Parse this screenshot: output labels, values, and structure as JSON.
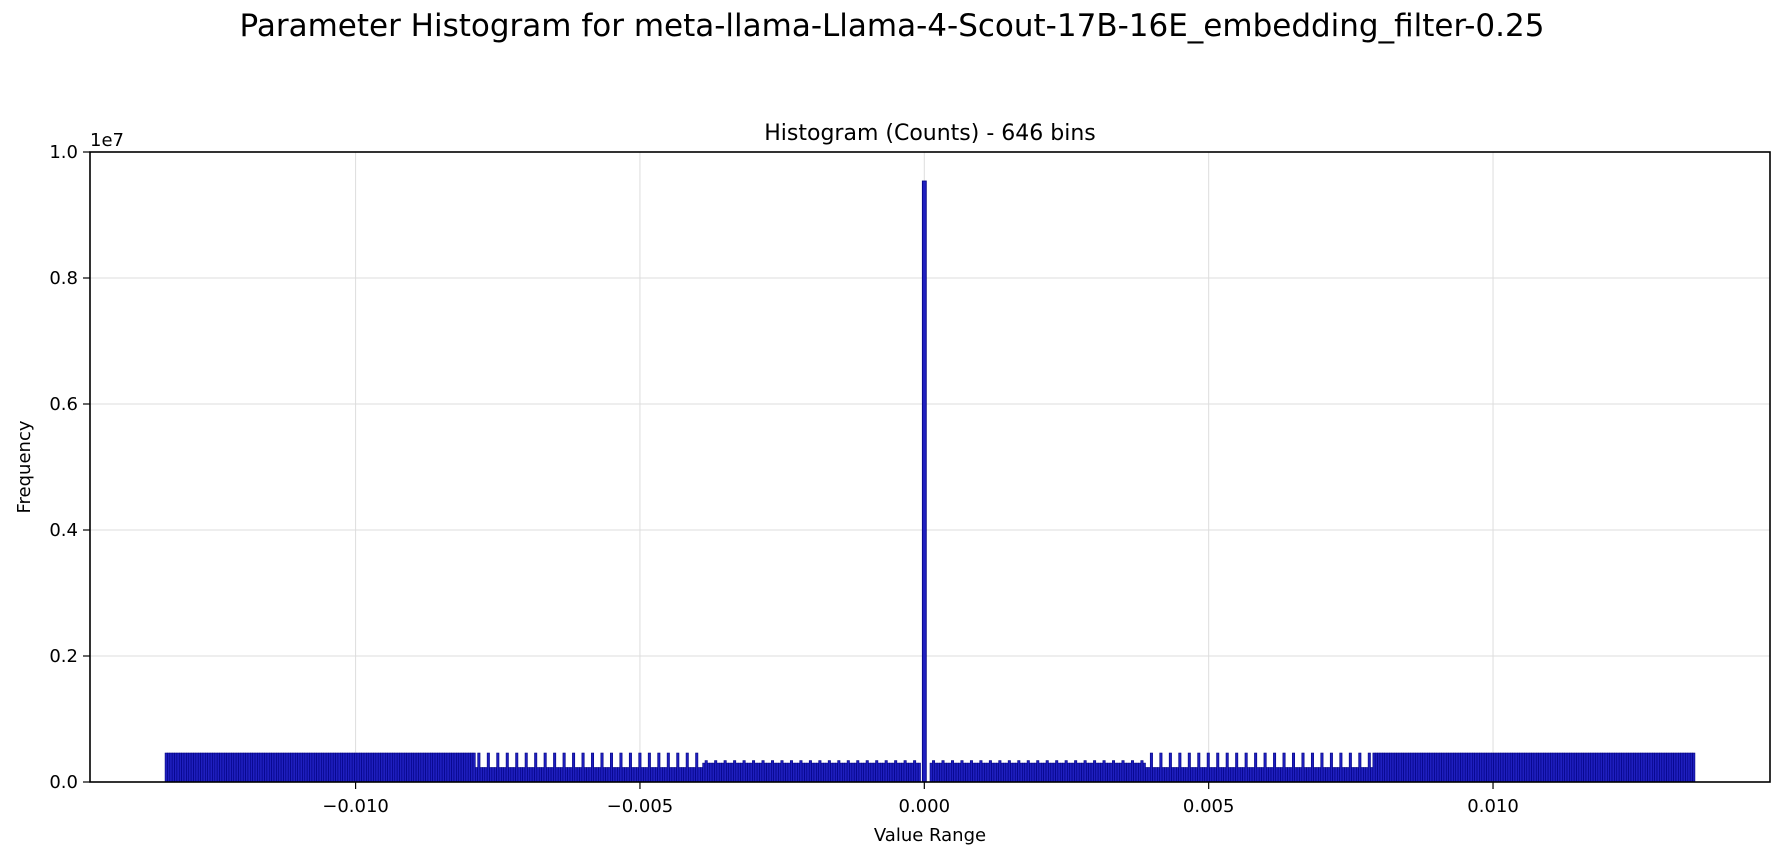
{
  "figure": {
    "suptitle": "Parameter Histogram for meta-llama-Llama-4-Scout-17B-16E_embedding_filter-0.25"
  },
  "chart_data": {
    "type": "bar",
    "title": "Histogram (Counts) - 646 bins",
    "xlabel": "Value Range",
    "ylabel": "Frequency",
    "y_offset_label": "1e7",
    "xlim": [
      -0.01467,
      0.01487
    ],
    "ylim": [
      0,
      10000000
    ],
    "xticks": [
      -0.01,
      -0.005,
      0.0,
      0.005,
      0.01
    ],
    "xtick_labels": [
      "−0.010",
      "−0.005",
      "0.000",
      "0.005",
      "0.010"
    ],
    "yticks": [
      0,
      2000000,
      4000000,
      6000000,
      8000000,
      10000000
    ],
    "ytick_labels": [
      "0.0",
      "0.2",
      "0.4",
      "0.6",
      "0.8",
      "1.0"
    ],
    "grid": true,
    "bar_color": "#1f1fbf",
    "edge_color": "#000080",
    "bins": 646,
    "bin_range": [
      -0.01335,
      0.01355
    ],
    "level_segments": [
      {
        "from": -0.01335,
        "to": -0.0079,
        "count": 460000
      },
      {
        "from": -0.0079,
        "to": -0.0039,
        "count": 460000,
        "alt_count": 230000
      },
      {
        "from": -0.0039,
        "to": -5e-05,
        "count": 340000,
        "alt_count": 300000
      },
      {
        "from": 0.0001,
        "to": 0.0039,
        "count": 340000,
        "alt_count": 300000
      },
      {
        "from": 0.0039,
        "to": 0.0079,
        "count": 460000,
        "alt_count": 230000
      },
      {
        "from": 0.0079,
        "to": 0.01355,
        "count": 460000
      }
    ],
    "peak": {
      "x": 0.0,
      "count": 9540000
    }
  }
}
